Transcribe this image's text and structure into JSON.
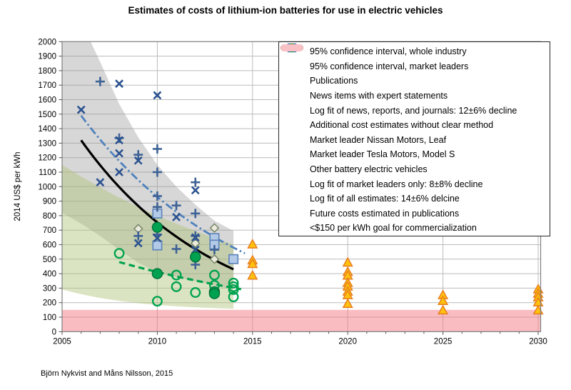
{
  "title": "Estimates of costs of lithium-ion batteries for use in electric vehicles",
  "footer": "Björn Nykvist and Måns Nilsson, 2015",
  "y_axis_label": "2014 US$ per kWh",
  "chart_data": {
    "type": "scatter",
    "title": "Estimates of costs of lithium-ion batteries for use in electric vehicles",
    "xlabel": "",
    "ylabel": "2014 US$ per kWh",
    "xlim": [
      2005,
      2030.15
    ],
    "ylim": [
      0,
      2000
    ],
    "y_tick_step": 100,
    "x_ticks": [
      2005,
      2010,
      2015,
      2020,
      2025,
      2030
    ],
    "grid": true,
    "colors": {
      "plus": "#3e6295",
      "x": "#2c5390",
      "square_fill": "#b3c9e8",
      "square_stroke": "#5b83b8",
      "news_fit": "#4f81bd",
      "green": "#00a24f",
      "green_dark": "#00713a",
      "diamond_fill": "#ecebdb",
      "diamond_stroke": "#77876b",
      "triangle_fill": "#ffc20e",
      "triangle_stroke": "#e87e1e",
      "goal_band": "rgba(244,121,131,0.5)",
      "industry_band": "rgba(150,150,150,0.38)",
      "leaders_band": "rgba(175,195,120,0.45)",
      "grid_line": "#bcbcbc",
      "plot_border": "#7f7f7f"
    },
    "bands": [
      {
        "name": "ci-whole-industry",
        "upper": [
          [
            2005,
            2000
          ],
          [
            2006.5,
            2000
          ],
          [
            2007,
            1860
          ],
          [
            2008,
            1570
          ],
          [
            2009,
            1340
          ],
          [
            2010,
            1150
          ],
          [
            2011,
            1000
          ],
          [
            2012,
            875
          ],
          [
            2013,
            765
          ],
          [
            2014,
            695
          ]
        ],
        "lower": [
          [
            2005,
            820
          ],
          [
            2006,
            745
          ],
          [
            2007,
            660
          ],
          [
            2008,
            565
          ],
          [
            2009,
            475
          ],
          [
            2010,
            410
          ],
          [
            2011,
            375
          ],
          [
            2012,
            348
          ],
          [
            2013,
            318
          ],
          [
            2014,
            292
          ]
        ]
      },
      {
        "name": "ci-market-leaders",
        "upper": [
          [
            2005,
            1150
          ],
          [
            2006,
            1070
          ],
          [
            2007,
            995
          ],
          [
            2008,
            925
          ],
          [
            2009,
            860
          ],
          [
            2010,
            800
          ],
          [
            2011,
            745
          ],
          [
            2012,
            695
          ],
          [
            2013,
            645
          ],
          [
            2014,
            600
          ]
        ],
        "lower": [
          [
            2005,
            290
          ],
          [
            2006,
            258
          ],
          [
            2007,
            232
          ],
          [
            2008,
            212
          ],
          [
            2009,
            196
          ],
          [
            2010,
            184
          ],
          [
            2011,
            175
          ],
          [
            2012,
            168
          ],
          [
            2013,
            162
          ],
          [
            2014,
            158
          ]
        ]
      }
    ],
    "goal_band": {
      "from": 0,
      "to": 150,
      "label": "<$150 per kWh goal for commercialization"
    },
    "fits": [
      {
        "name": "fit-news",
        "label": "Log fit of news, reports, and journals: 12±6% decline",
        "style": "dashdot",
        "width": 2.8,
        "from": [
          2006,
          1490
        ],
        "to": [
          2014.6,
          540
        ]
      },
      {
        "name": "fit-all",
        "label": "Log fit of all estimates: 14±6% delcine",
        "style": "solid",
        "width": 3.2,
        "from": [
          2006,
          1320
        ],
        "to": [
          2014,
          430
        ]
      },
      {
        "name": "fit-leaders",
        "label": "Log fit of market leaders only: 8±8% decline",
        "style": "dashed",
        "width": 3.2,
        "from": [
          2008,
          480
        ],
        "to": [
          2014.4,
          293
        ]
      }
    ],
    "series": [
      {
        "name": "publications",
        "label": "Publications",
        "marker": "plus",
        "points": [
          [
            2007,
            1725
          ],
          [
            2008,
            1335
          ],
          [
            2009,
            1220
          ],
          [
            2009,
            660
          ],
          [
            2010,
            1260
          ],
          [
            2010,
            1100
          ],
          [
            2010,
            935
          ],
          [
            2010,
            860
          ],
          [
            2010,
            670
          ],
          [
            2011,
            870
          ],
          [
            2011,
            570
          ],
          [
            2012,
            1030
          ],
          [
            2012,
            815
          ],
          [
            2012,
            660
          ],
          [
            2012,
            462
          ],
          [
            2013,
            565
          ]
        ]
      },
      {
        "name": "news-items",
        "label": "News items with expert statements",
        "marker": "square",
        "points": [
          [
            2010,
            815
          ],
          [
            2010,
            595
          ],
          [
            2013,
            645
          ],
          [
            2013,
            600
          ],
          [
            2014,
            500
          ]
        ]
      },
      {
        "name": "additional-estimates",
        "label": "Additional cost estimates without clear method",
        "marker": "x",
        "points": [
          [
            2006,
            1530
          ],
          [
            2007,
            1030
          ],
          [
            2008,
            1710
          ],
          [
            2008,
            1320
          ],
          [
            2008,
            1230
          ],
          [
            2008,
            1100
          ],
          [
            2009,
            1180
          ],
          [
            2009,
            610
          ],
          [
            2010,
            1630
          ],
          [
            2010,
            645
          ],
          [
            2011,
            790
          ],
          [
            2012,
            975
          ],
          [
            2012,
            650
          ],
          [
            2012,
            565
          ]
        ]
      },
      {
        "name": "nissan-leaf",
        "label": "Market leader Nissan Motors, Leaf",
        "marker": "dot",
        "points": [
          [
            2010,
            720
          ],
          [
            2010,
            400
          ],
          [
            2012,
            515
          ],
          [
            2013,
            275
          ],
          [
            2013,
            262
          ]
        ]
      },
      {
        "name": "tesla-model-s",
        "label": "Market leader Tesla Motors, Model S",
        "marker": "circle",
        "points": [
          [
            2008,
            540
          ],
          [
            2010,
            210
          ],
          [
            2011,
            390
          ],
          [
            2011,
            310
          ],
          [
            2012,
            270
          ],
          [
            2013,
            390
          ],
          [
            2013,
            320
          ],
          [
            2014,
            335
          ],
          [
            2014,
            310
          ],
          [
            2014,
            290
          ],
          [
            2014,
            240
          ]
        ]
      },
      {
        "name": "other-bev",
        "label": "Other battery electric vehicles",
        "marker": "diamond",
        "points": [
          [
            2009,
            710
          ],
          [
            2012,
            610
          ],
          [
            2013,
            715
          ],
          [
            2013,
            500
          ]
        ]
      },
      {
        "name": "future-costs",
        "label": "Future costs estimated in publications",
        "marker": "triangle",
        "points": [
          [
            2015,
            600
          ],
          [
            2015,
            490
          ],
          [
            2015,
            465
          ],
          [
            2015,
            385
          ],
          [
            2020,
            475
          ],
          [
            2020,
            410
          ],
          [
            2020,
            385
          ],
          [
            2020,
            335
          ],
          [
            2020,
            310
          ],
          [
            2020,
            275
          ],
          [
            2020,
            250
          ],
          [
            2020,
            190
          ],
          [
            2025,
            250
          ],
          [
            2025,
            210
          ],
          [
            2025,
            145
          ],
          [
            2030,
            290
          ],
          [
            2030,
            260
          ],
          [
            2030,
            235
          ],
          [
            2030,
            200
          ],
          [
            2030,
            145
          ]
        ]
      }
    ]
  },
  "legend": {
    "items": [
      {
        "name": "industry-ci-swatch",
        "type": "band",
        "color": "#d9d9d9",
        "label": "95% confidence interval, whole industry"
      },
      {
        "name": "leaders-ci-swatch",
        "type": "band",
        "color": "#e3ecca",
        "label": "95% confidence interval, market leaders"
      },
      {
        "name": "publications-marker",
        "type": "plus",
        "color": "#3e6295",
        "label": "Publications"
      },
      {
        "name": "news-items-marker",
        "type": "square",
        "color": "#b3c9e8",
        "stroke": "#5b83b8",
        "label": "News items with expert statements"
      },
      {
        "name": "news-fit-line",
        "type": "dashdot",
        "color": "#4f81bd",
        "label": "Log fit of news, reports, and journals: 12±6% decline"
      },
      {
        "name": "additional-estimates-marker",
        "type": "x",
        "color": "#2c5390",
        "label": "Additional cost estimates without clear method"
      },
      {
        "name": "nissan-leaf-marker",
        "type": "dot",
        "color": "#00a24f",
        "stroke": "#00713a",
        "label": "Market leader Nissan Motors, Leaf"
      },
      {
        "name": "tesla-model-s-marker",
        "type": "circle",
        "color": "#00a24f",
        "label": "Market leader Tesla Motors, Model S"
      },
      {
        "name": "other-bev-marker",
        "type": "diamond",
        "color": "#ecebdb",
        "stroke": "#77876b",
        "label": "Other battery electric vehicles"
      },
      {
        "name": "leaders-fit-line",
        "type": "dashed",
        "color": "#00a24f",
        "label": "Log fit of market leaders only: 8±8% decline"
      },
      {
        "name": "all-fit-line",
        "type": "solid",
        "color": "#000000",
        "label": "Log fit of all estimates: 14±6% delcine"
      },
      {
        "name": "future-costs-marker",
        "type": "triangle",
        "color": "#ffc20e",
        "stroke": "#e87e1e",
        "label": "Future costs estimated in publications"
      },
      {
        "name": "goal-band-swatch",
        "type": "pill",
        "color": "#f9c0c5",
        "label": "<$150 per kWh goal for commercialization"
      }
    ]
  }
}
